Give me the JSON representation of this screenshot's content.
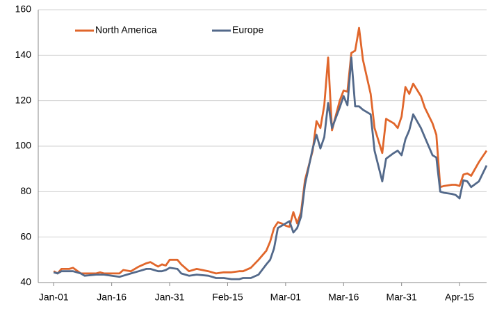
{
  "chart_data": {
    "type": "line",
    "x": [
      0,
      1,
      2,
      4,
      5,
      7,
      8,
      11,
      12,
      13,
      17,
      18,
      20,
      22,
      24,
      25,
      27,
      28,
      29,
      30,
      32,
      33,
      35,
      37,
      40,
      41,
      42,
      44,
      46,
      48,
      49,
      51,
      53,
      55,
      56,
      57,
      58,
      59,
      60,
      61,
      62,
      63,
      64,
      65,
      67,
      68,
      69,
      70,
      71,
      72,
      74,
      75,
      76,
      77,
      78,
      79,
      80,
      82,
      83,
      85,
      86,
      88,
      89,
      90,
      91,
      92,
      93,
      95,
      96,
      98,
      99,
      100,
      101,
      103,
      104,
      105,
      106,
      107,
      108,
      110,
      112
    ],
    "series": [
      {
        "name": "North America",
        "color": "#e0662b",
        "values": [
          45,
          44,
          46,
          46,
          46.5,
          44,
          44,
          44,
          44.5,
          44,
          44,
          45.5,
          45,
          47,
          48.5,
          49,
          47,
          48,
          47.5,
          50,
          50,
          48,
          45,
          46,
          45,
          44.5,
          44,
          44.5,
          44.5,
          45,
          45,
          46.5,
          50,
          54,
          58,
          64,
          66.5,
          66,
          65,
          64.5,
          71,
          66,
          71,
          85,
          98,
          111,
          108,
          118,
          139,
          107,
          120,
          124.5,
          124,
          141,
          142,
          152,
          138,
          123,
          108,
          97,
          112,
          110,
          108,
          113,
          126,
          123,
          127.5,
          122,
          117,
          110,
          105,
          82,
          82.5,
          83,
          83,
          82.5,
          87.5,
          88,
          87,
          93,
          98
        ]
      },
      {
        "name": "Europe",
        "color": "#53698a",
        "values": [
          44.5,
          44,
          45,
          45,
          45,
          44,
          43,
          43.5,
          43.5,
          43.5,
          42.5,
          43,
          44,
          45,
          46,
          46,
          45,
          45,
          45.5,
          46.5,
          46,
          44,
          43,
          43.5,
          43,
          42.5,
          42,
          42,
          41.5,
          41.5,
          42,
          42,
          43.5,
          48,
          50,
          55,
          64,
          65,
          66,
          67,
          62,
          64,
          69,
          83,
          99,
          105,
          99,
          104,
          119,
          108,
          117,
          122,
          118,
          139,
          117.5,
          117.5,
          116,
          114,
          98,
          84.5,
          94.5,
          97,
          98,
          96,
          103,
          107,
          114,
          108,
          104,
          96,
          95,
          80,
          79.5,
          79,
          78.5,
          77,
          85,
          84.5,
          82,
          84.5,
          91.5
        ]
      }
    ],
    "xlim": [
      -4,
      112
    ],
    "xticks": [
      {
        "value": 0,
        "label": "Jan-01"
      },
      {
        "value": 15,
        "label": "Jan-16"
      },
      {
        "value": 30,
        "label": "Jan-31"
      },
      {
        "value": 45,
        "label": "Feb-15"
      },
      {
        "value": 60,
        "label": "Mar-01"
      },
      {
        "value": 75,
        "label": "Mar-16"
      },
      {
        "value": 90,
        "label": "Mar-31"
      },
      {
        "value": 105,
        "label": "Apr-15"
      }
    ],
    "ylim": [
      40,
      160
    ],
    "yticks": [
      40,
      60,
      80,
      100,
      120,
      140,
      160
    ],
    "grid": true,
    "legend": "top-left"
  }
}
